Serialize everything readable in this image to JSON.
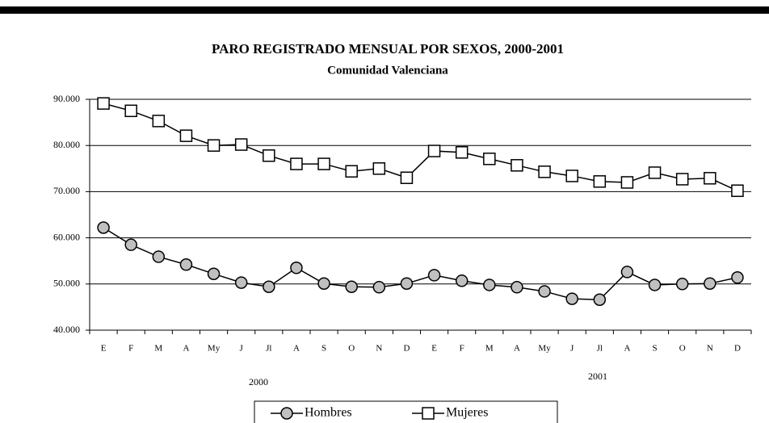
{
  "chart_data": {
    "type": "line",
    "title": "PARO REGISTRADO MENSUAL POR SEXOS, 2000-2001",
    "subtitle": "Comunidad Valenciana",
    "categories": [
      "E",
      "F",
      "M",
      "A",
      "My",
      "J",
      "Jl",
      "A",
      "S",
      "O",
      "N",
      "D",
      "E",
      "F",
      "M",
      "A",
      "My",
      "J",
      "Jl",
      "A",
      "S",
      "O",
      "N",
      "D"
    ],
    "annotations": [
      "2000",
      "2001"
    ],
    "series": [
      {
        "name": "Hombres",
        "color": "#c0c0c0",
        "marker": "circle",
        "values": [
          62200,
          58500,
          55900,
          54200,
          52200,
          50300,
          49400,
          53500,
          50100,
          49400,
          49300,
          50100,
          51900,
          50700,
          49800,
          49300,
          48400,
          46800,
          46600,
          52600,
          49800,
          50000,
          50100,
          51400
        ]
      },
      {
        "name": "Mujeres",
        "color": "#ffffff",
        "marker": "square",
        "values": [
          89100,
          87500,
          85300,
          82100,
          80000,
          80200,
          77800,
          76000,
          76000,
          74400,
          75000,
          73000,
          78800,
          78500,
          77100,
          75700,
          74300,
          73400,
          72200,
          72000,
          74100,
          72700,
          72900,
          70200
        ]
      }
    ],
    "ylim": [
      40000,
      90000
    ],
    "yticks": [
      {
        "value": 40000,
        "label": "40.000"
      },
      {
        "value": 50000,
        "label": "50.000"
      },
      {
        "value": 60000,
        "label": "60.000"
      },
      {
        "value": 70000,
        "label": "70.000"
      },
      {
        "value": 80000,
        "label": "80.000"
      },
      {
        "value": 90000,
        "label": "90.000"
      }
    ],
    "grid": true,
    "legend": "bottom"
  }
}
